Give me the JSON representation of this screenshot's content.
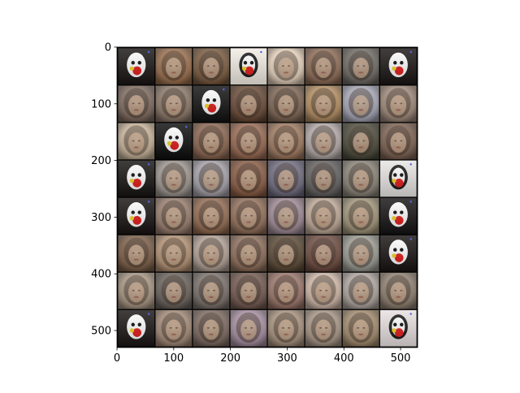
{
  "chart_data": {
    "type": "image",
    "title": "",
    "xlabel": "",
    "ylabel": "",
    "xlim": [
      0,
      530
    ],
    "ylim": [
      530,
      0
    ],
    "x_ticks": [
      0,
      100,
      200,
      300,
      400,
      500
    ],
    "y_ticks": [
      0,
      100,
      200,
      300,
      400,
      500
    ],
    "grid": {
      "rows": 8,
      "cols": 8,
      "tile_size": 64,
      "padding": 2,
      "separator_color": "#000000",
      "tiles": [
        [
          "artifact",
          "face",
          "face",
          "artifact",
          "face",
          "face",
          "face",
          "artifact"
        ],
        [
          "face",
          "face",
          "artifact",
          "face",
          "face",
          "face",
          "face",
          "face"
        ],
        [
          "face",
          "artifact",
          "face",
          "face",
          "face",
          "face",
          "face",
          "face"
        ],
        [
          "artifact",
          "face",
          "face",
          "face",
          "face",
          "face",
          "face",
          "artifact"
        ],
        [
          "artifact",
          "face",
          "face",
          "face",
          "face",
          "face",
          "face",
          "artifact"
        ],
        [
          "face",
          "face",
          "face",
          "face",
          "face",
          "face",
          "face",
          "artifact"
        ],
        [
          "face",
          "face",
          "face",
          "face",
          "face",
          "face",
          "face",
          "face"
        ],
        [
          "artifact",
          "face",
          "face",
          "face",
          "face",
          "face",
          "face",
          "artifact"
        ]
      ],
      "tile_colors": [
        [
          "#1a1414",
          "#9a6e4c",
          "#7a5a3e",
          "#f2ede4",
          "#e6d2bc",
          "#8e6c56",
          "#6e6a64",
          "#1a1414"
        ],
        [
          "#7e6a5e",
          "#8c7868",
          "#101010",
          "#6a4a36",
          "#7e6654",
          "#b48e62",
          "#a8a8b8",
          "#a08a7a"
        ],
        [
          "#c8b49a",
          "#0c0c0c",
          "#8c6650",
          "#9a6a52",
          "#a07a60",
          "#b4aaa8",
          "#4c4a3a",
          "#7e6252"
        ],
        [
          "#161212",
          "#9e9690",
          "#a6a2aa",
          "#8a5c44",
          "#706c80",
          "#646060",
          "#8a8478",
          "#e8e4e4"
        ],
        [
          "#181212",
          "#9a7e6e",
          "#946c52",
          "#94705a",
          "#a08a96",
          "#c0aa98",
          "#a2967a",
          "#141212"
        ],
        [
          "#7c5e46",
          "#b49274",
          "#b2a296",
          "#8e6e5a",
          "#5c4a36",
          "#6e4c40",
          "#9c9c94",
          "#181212"
        ],
        [
          "#a89682",
          "#6a625c",
          "#7a706a",
          "#745a50",
          "#9c766a",
          "#d0b8a8",
          "#b0a6a0",
          "#908070"
        ],
        [
          "#1a1414",
          "#a48a78",
          "#7c6a60",
          "#a68ea0",
          "#a8927e",
          "#a89686",
          "#a48c6e",
          "#e8e0e0"
        ]
      ]
    }
  }
}
